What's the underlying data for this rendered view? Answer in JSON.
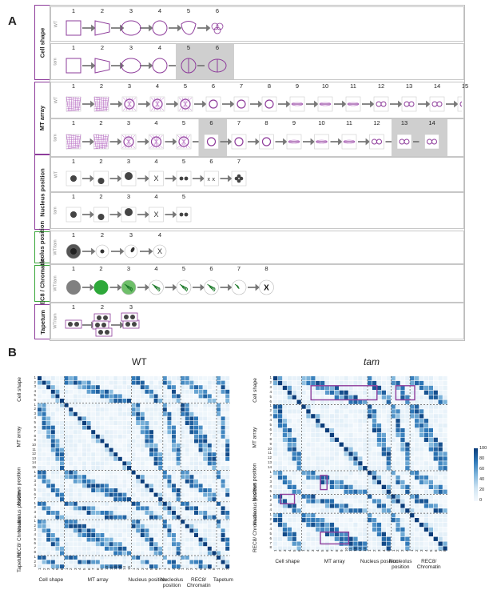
{
  "panel_a": {
    "letter": "A",
    "groups": [
      {
        "name": "Cell shape",
        "color": "#8e3c9b"
      },
      {
        "name": "MT array",
        "color": "#8e3c9b"
      },
      {
        "name": "Nucleus position",
        "color": "#8e3c9b"
      },
      {
        "name": "Nucleolus position",
        "color": "#3aa63a"
      },
      {
        "name": "REC8 / Chromatin",
        "color": "#3aa63a"
      },
      {
        "name": "Tapetum",
        "color": "#8e3c9b"
      }
    ],
    "rows": [
      {
        "label": "WT",
        "steps": [
          "1",
          "2",
          "3",
          "4",
          "5",
          "6"
        ]
      },
      {
        "label": "tam",
        "steps": [
          "1",
          "2",
          "3",
          "4",
          "5",
          "6"
        ]
      },
      {
        "label": "WT",
        "steps": [
          "1",
          "2",
          "3",
          "4",
          "5",
          "6",
          "7",
          "8",
          "9",
          "10",
          "11",
          "12",
          "13",
          "14",
          "15"
        ]
      },
      {
        "label": "tam",
        "steps": [
          "1",
          "2",
          "3",
          "4",
          "5",
          "6",
          "7",
          "8",
          "9",
          "10",
          "11",
          "12",
          "13",
          "14"
        ]
      },
      {
        "label": "WT",
        "steps": [
          "1",
          "2",
          "3",
          "4",
          "5",
          "6",
          "7"
        ]
      },
      {
        "label": "tam",
        "steps": [
          "1",
          "2",
          "3",
          "4",
          "5"
        ]
      },
      {
        "label": "WT/tam",
        "steps": [
          "1",
          "2",
          "3",
          "4"
        ]
      },
      {
        "label": "WT/tam",
        "steps": [
          "1",
          "2",
          "3",
          "4",
          "5",
          "6",
          "7",
          "8"
        ]
      },
      {
        "label": "WT/tam",
        "steps": [
          "1",
          "2",
          "3"
        ]
      }
    ],
    "terminal_marks": [
      "X",
      "X",
      "X",
      "X",
      "X",
      "X"
    ]
  },
  "panel_b": {
    "letter": "B",
    "heatmaps": [
      {
        "title": "WT",
        "row_sections": [
          "Cell shape",
          "MT array",
          "Nucleus position",
          "Nucleolus position",
          "REC8/ Chromatin",
          "Tapetum"
        ],
        "col_sections": [
          "Cell shape",
          "MT array",
          "Nucleus position",
          "Nucleolus position",
          "REC8/ Chromatin",
          "Tapetum"
        ]
      },
      {
        "title": "tam",
        "row_sections": [
          "Cell shape",
          "MT array",
          "Nucleus position",
          "Nucleolus position",
          "REC8/ Chromatin"
        ],
        "col_sections": [
          "Cell shape",
          "MT array",
          "Nucleus position",
          "Nucleolus position",
          "REC8/ Chromatin"
        ]
      }
    ],
    "colorbar": {
      "ticks": [
        "100",
        "80",
        "60",
        "40",
        "20",
        "0"
      ],
      "min": 0,
      "max": 100,
      "low_color": "#f4f9fd",
      "high_color": "#0b3d7a"
    }
  },
  "chart_data": {
    "type": "heatmap",
    "series": [
      {
        "name": "WT",
        "sections": [
          [
            "Cell shape",
            6
          ],
          [
            "MT array",
            15
          ],
          [
            "Nucleus position",
            7
          ],
          [
            "Nucleolus position",
            4
          ],
          [
            "REC8/ Chromatin",
            8
          ],
          [
            "Tapetum",
            3
          ]
        ]
      },
      {
        "name": "tam",
        "sections": [
          [
            "Cell shape",
            6
          ],
          [
            "MT array",
            14
          ],
          [
            "Nucleus position",
            5
          ],
          [
            "Nucleolus position",
            4
          ],
          [
            "REC8/ Chromatin",
            8
          ]
        ]
      }
    ],
    "value_range": [
      0,
      100
    ]
  }
}
